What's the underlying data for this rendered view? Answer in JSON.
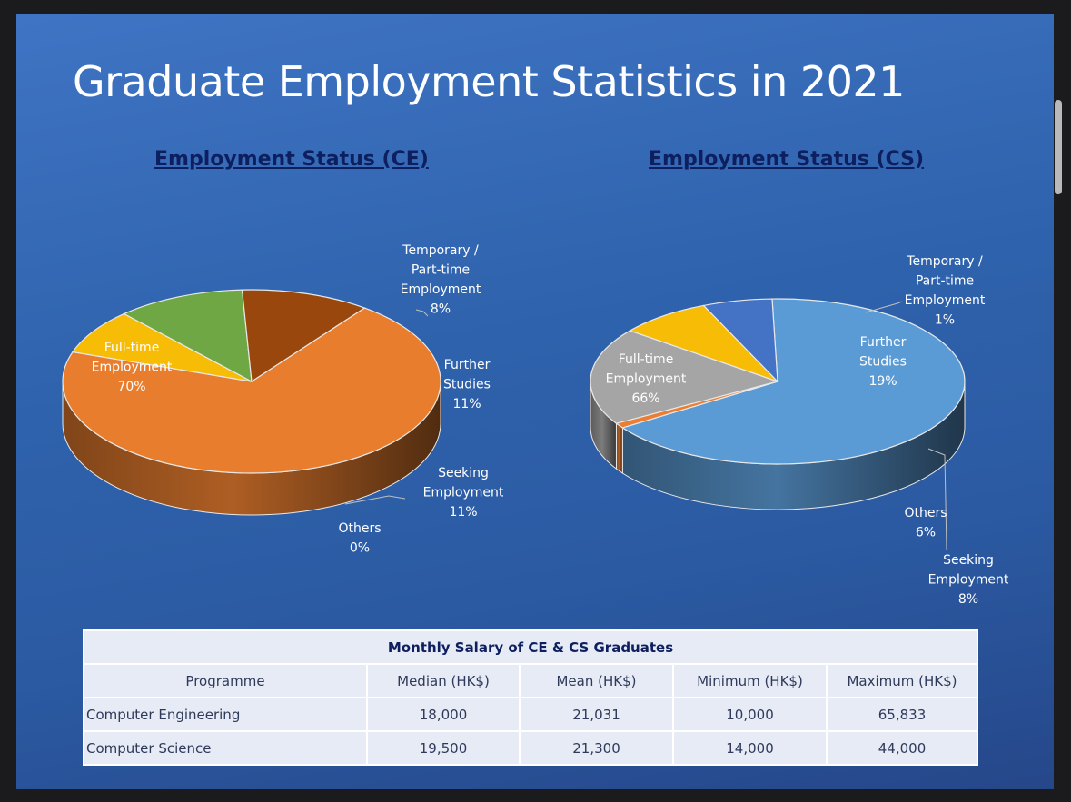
{
  "title": "Graduate Employment Statistics in 2021",
  "chart_data": [
    {
      "type": "pie",
      "title": "Employment Status (CE)",
      "series": [
        {
          "label": "Full-time Employment",
          "value": 70,
          "color": "#e87d2e"
        },
        {
          "label": "Temporary / Part-time Employment",
          "value": 8,
          "color": "#f7bd06"
        },
        {
          "label": "Further Studies",
          "value": 11,
          "color": "#6fa745"
        },
        {
          "label": "Seeking Employment",
          "value": 11,
          "color": "#9a470d"
        },
        {
          "label": "Others",
          "value": 0,
          "color": "#9a470d"
        }
      ],
      "value_labels": [
        "70%",
        "8%",
        "11%",
        "11%",
        "0%"
      ]
    },
    {
      "type": "pie",
      "title": "Employment Status (CS)",
      "series": [
        {
          "label": "Full-time Employment",
          "value": 66,
          "color": "#5b9bd5"
        },
        {
          "label": "Temporary / Part-time Employment",
          "value": 1,
          "color": "#ed7d31"
        },
        {
          "label": "Further Studies",
          "value": 19,
          "color": "#a5a5a5"
        },
        {
          "label": "Seeking Employment",
          "value": 8,
          "color": "#f7bd06"
        },
        {
          "label": "Others",
          "value": 6,
          "color": "#4472c4"
        }
      ],
      "value_labels": [
        "66%",
        "1%",
        "19%",
        "8%",
        "6%"
      ]
    }
  ],
  "label_lines": {
    "full_time": [
      "Full-time",
      "Employment"
    ],
    "temporary": [
      "Temporary /",
      "Part-time",
      "Employment"
    ],
    "further": [
      "Further",
      "Studies"
    ],
    "seeking": [
      "Seeking",
      "Employment"
    ],
    "others": [
      "Others"
    ]
  },
  "salary_table": {
    "caption": "Monthly Salary of CE & CS Graduates",
    "headers": [
      "Programme",
      "Median (HK$)",
      "Mean (HK$)",
      "Minimum (HK$)",
      "Maximum (HK$)"
    ],
    "rows": [
      [
        "Computer Engineering",
        "18,000",
        "21,031",
        "10,000",
        "65,833"
      ],
      [
        "Computer Science",
        "19,500",
        "21,300",
        "14,000",
        "44,000"
      ]
    ]
  }
}
